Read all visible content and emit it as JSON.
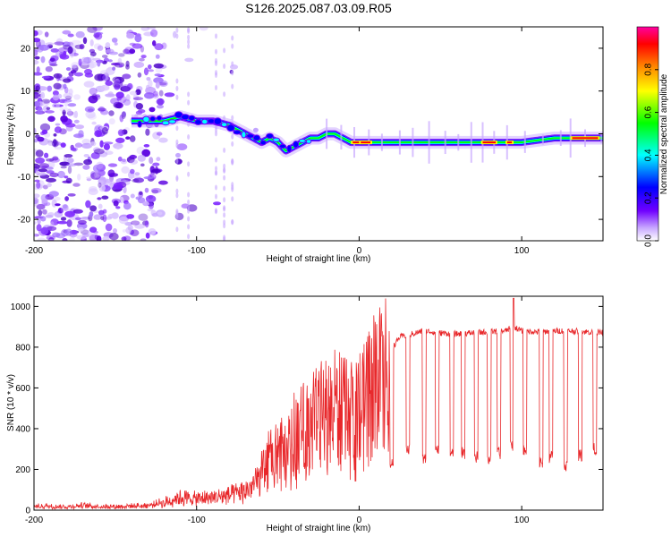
{
  "title": "S126.2025.087.03.09.R05",
  "chart_data": [
    {
      "type": "heatmap",
      "xlabel": "Height of straight line (km)",
      "ylabel": "Frequency (Hz)",
      "xlim": [
        -200,
        150
      ],
      "ylim": [
        -25,
        25
      ],
      "xticks": [
        -200,
        -100,
        0,
        100
      ],
      "yticks": [
        -20,
        -10,
        0,
        10,
        20
      ],
      "colorbar": {
        "label": "Normalized spectral amplitude",
        "range": [
          0.0,
          1.0
        ],
        "ticks": [
          "0.0",
          "0.2",
          "0.4",
          "0.6",
          "0.8"
        ],
        "colors": [
          "#ffffff",
          "#c8a8ff",
          "#7000ff",
          "#0000ff",
          "#00ffff",
          "#00ff00",
          "#ffff00",
          "#ff8000",
          "#ff0000",
          "#ff00a0"
        ]
      },
      "ridge": {
        "x": [
          -140,
          -130,
          -120,
          -110,
          -100,
          -90,
          -80,
          -70,
          -65,
          -60,
          -55,
          -50,
          -45,
          -40,
          -35,
          -30,
          -25,
          -20,
          -15,
          -10,
          -5,
          0,
          10,
          20,
          40,
          60,
          80,
          100,
          120,
          150
        ],
        "y": [
          3,
          3,
          3,
          4,
          3,
          3,
          2,
          0,
          -1,
          -2,
          -1,
          -2,
          -4,
          -3,
          -2,
          -1,
          -1,
          0,
          0,
          -1,
          -2,
          -2,
          -2,
          -2,
          -2,
          -2,
          -2,
          -2,
          -1,
          -1
        ]
      },
      "noise_region_x": [
        -200,
        -120
      ]
    },
    {
      "type": "line",
      "xlabel": "Height of straight line (km)",
      "ylabel": "SNR (10 * v/v)",
      "xlim": [
        -200,
        150
      ],
      "ylim": [
        0,
        1050
      ],
      "xticks": [
        -200,
        -100,
        0,
        100
      ],
      "yticks": [
        0,
        200,
        400,
        600,
        800,
        1000
      ],
      "color": "#e8272a",
      "series": [
        {
          "x": [
            -200,
            -190,
            -180,
            -170,
            -160,
            -150,
            -140,
            -130,
            -120,
            -110,
            -100,
            -90,
            -80,
            -70,
            -60,
            -55,
            -50,
            -45,
            -40,
            -35,
            -30,
            -25,
            -20,
            -15,
            -10,
            -5,
            0,
            5,
            10,
            15,
            20,
            25,
            30,
            35,
            40,
            50,
            60,
            70,
            80,
            90,
            95,
            100,
            110,
            120,
            130,
            140,
            150
          ],
          "y": [
            20,
            22,
            18,
            25,
            20,
            20,
            22,
            25,
            40,
            70,
            60,
            70,
            80,
            100,
            180,
            250,
            270,
            300,
            330,
            420,
            450,
            500,
            520,
            540,
            560,
            500,
            550,
            620,
            680,
            760,
            790,
            850,
            860,
            870,
            880,
            870,
            865,
            870,
            875,
            880,
            900,
            880,
            875,
            880,
            880,
            875,
            870
          ]
        }
      ],
      "dips_x": [
        20,
        30,
        40,
        48,
        57,
        64,
        72,
        80,
        86,
        94,
        102,
        112,
        118,
        127,
        136,
        145
      ],
      "dip_y": [
        230,
        300,
        250,
        300,
        270,
        280,
        260,
        250,
        280,
        320,
        300,
        230,
        260,
        220,
        270,
        300
      ]
    }
  ]
}
